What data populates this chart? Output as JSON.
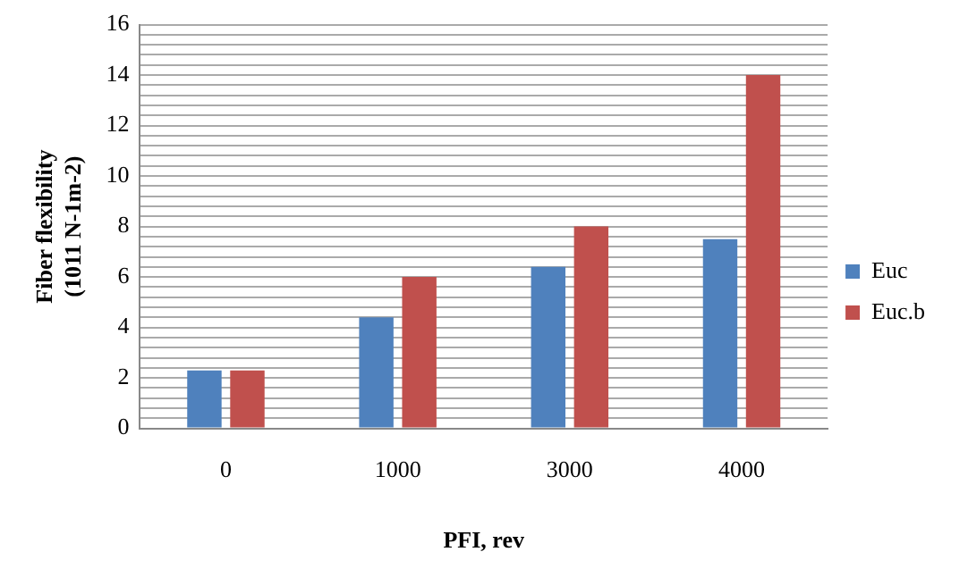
{
  "chart_data": {
    "type": "bar",
    "xlabel": "PFI, rev",
    "ylabel": "Fiber flexibility\n(1011 N-1m-2)",
    "categories": [
      "0",
      "1000",
      "3000",
      "4000"
    ],
    "series": [
      {
        "name": "Euc",
        "color": "#4f81bd",
        "values": [
          2.3,
          4.4,
          6.4,
          7.5
        ]
      },
      {
        "name": "Euc.b",
        "color": "#c0504d",
        "values": [
          2.3,
          6.0,
          8.0,
          14.0
        ]
      }
    ],
    "ylim": [
      0,
      16
    ],
    "yticks": [
      0,
      {
        "value": 0.4,
        "label": null
      },
      {
        "value": 0.8,
        "label": null
      },
      {
        "value": 1.2,
        "label": null
      },
      {
        "value": 1.6,
        "label": null
      },
      2,
      {
        "value": 2.4,
        "label": null
      },
      {
        "value": 2.8,
        "label": null
      },
      {
        "value": 3.2,
        "label": null
      },
      {
        "value": 3.6,
        "label": null
      },
      4,
      {
        "value": 4.4,
        "label": null
      },
      {
        "value": 4.8,
        "label": null
      },
      {
        "value": 5.2,
        "label": null
      },
      {
        "value": 5.6,
        "label": null
      },
      6,
      {
        "value": 6.4,
        "label": null
      },
      {
        "value": 6.8,
        "label": null
      },
      {
        "value": 7.2,
        "label": null
      },
      {
        "value": 7.6,
        "label": null
      },
      8,
      {
        "value": 8.4,
        "label": null
      },
      {
        "value": 8.8,
        "label": null
      },
      {
        "value": 9.2,
        "label": null
      },
      {
        "value": 9.6,
        "label": null
      },
      10,
      {
        "value": 10.4,
        "label": null
      },
      {
        "value": 10.8,
        "label": null
      },
      {
        "value": 11.2,
        "label": null
      },
      {
        "value": 11.6,
        "label": null
      },
      12,
      {
        "value": 12.4,
        "label": null
      },
      {
        "value": 12.8,
        "label": null
      },
      {
        "value": 13.2,
        "label": null
      },
      {
        "value": 13.6,
        "label": null
      },
      14,
      {
        "value": 14.4,
        "label": null
      },
      {
        "value": 14.8,
        "label": null
      },
      {
        "value": 15.2,
        "label": null
      },
      {
        "value": 15.6,
        "label": null
      },
      16
    ],
    "grid": "y",
    "legend": "right"
  }
}
